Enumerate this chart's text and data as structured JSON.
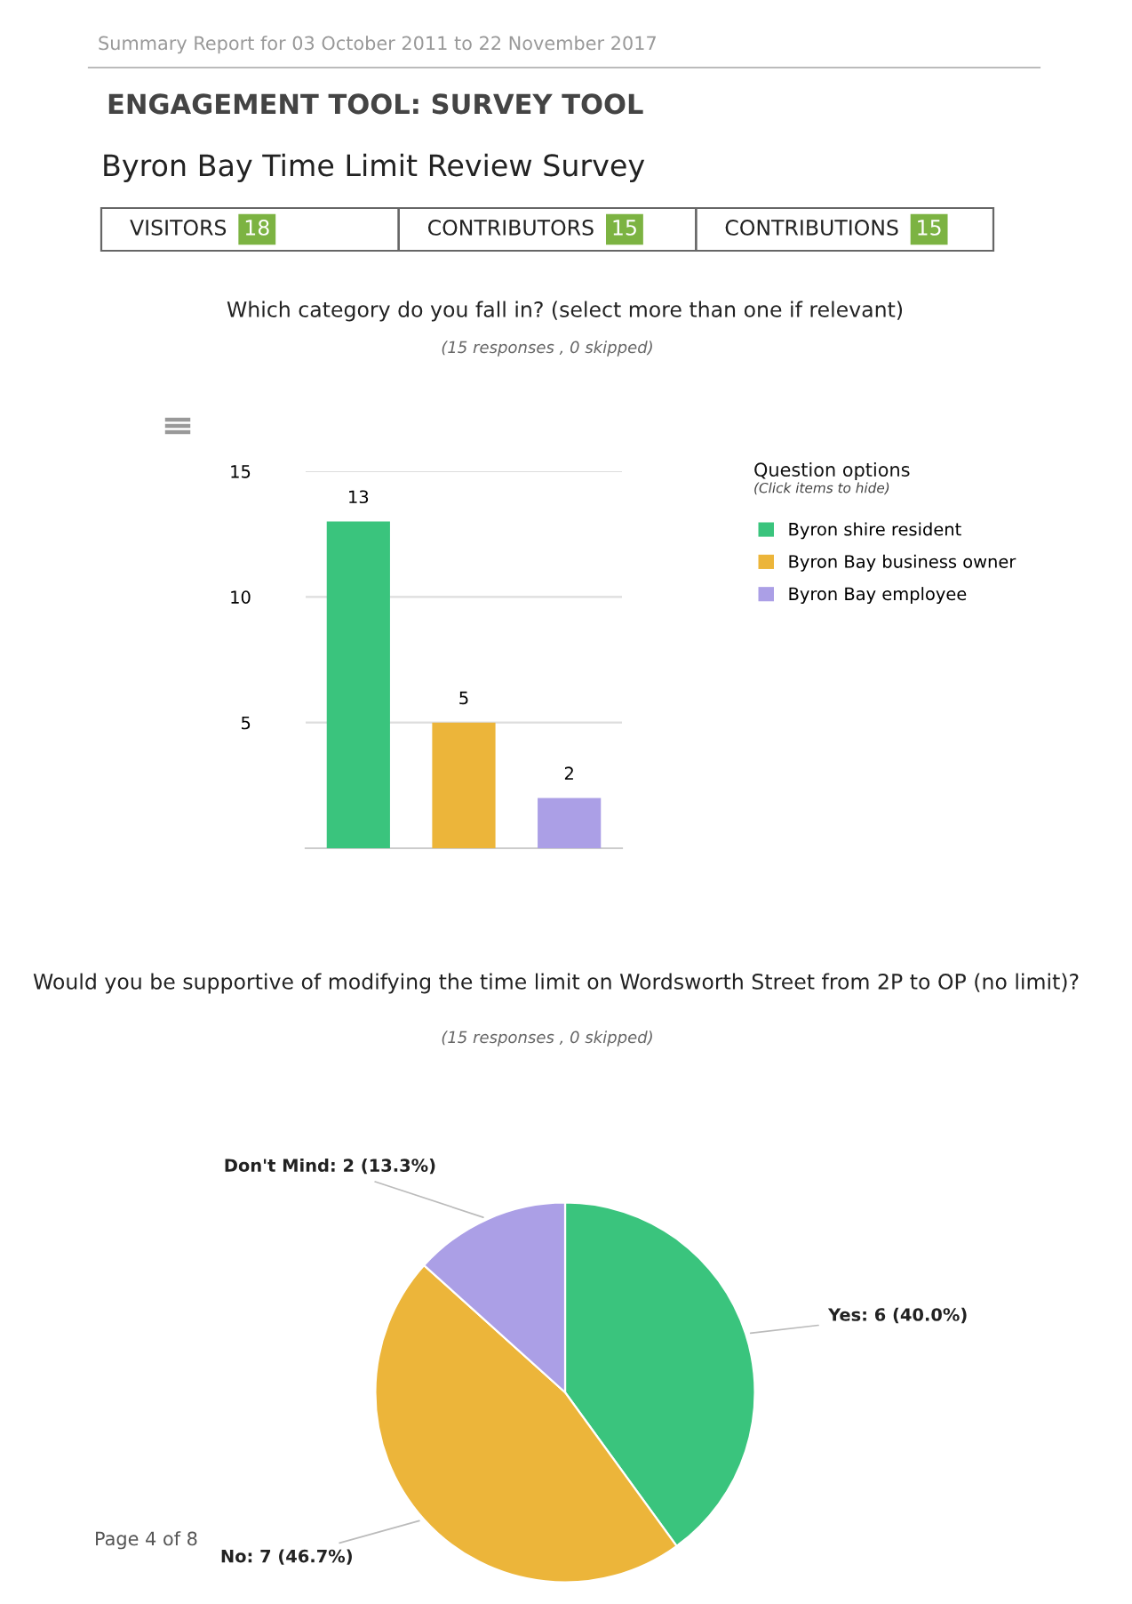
{
  "chart_data": [
    {
      "type": "other",
      "title": "ENGAGEMENT TOOL: SURVEY TOOL",
      "subtitle": "Byron Bay Time Limit Review Survey",
      "categories": [
        "VISITORS",
        "CONTRIBUTORS",
        "CONTRIBUTIONS"
      ],
      "values": [
        18,
        15,
        15
      ],
      "data_labels": true,
      "color": "#7cb342",
      "annotations": [
        "Summary Report for 03 October 2011 to 22 November 2017",
        "Page 4 of 8"
      ]
    },
    {
      "type": "bar",
      "title": "Which category do you fall in? (select more than one if relevant)",
      "subtitle": "(15 responses , 0 skipped)",
      "categories": [
        null,
        null,
        null
      ],
      "series": [
        {
          "name": "Byron shire resident",
          "color": "#3ac47d",
          "values": [
            13,
            null,
            null
          ]
        },
        {
          "name": "Byron Bay business owner",
          "color": "#ecb53a",
          "values": [
            null,
            5,
            null
          ]
        },
        {
          "name": "Byron Bay employee",
          "color": "#ab9fe6",
          "values": [
            null,
            null,
            2
          ]
        }
      ],
      "ylim": [
        0,
        15
      ],
      "yticks": [
        {
          "value": 0,
          "label": null
        },
        5,
        10,
        15
      ],
      "grid": "y",
      "data_labels": true,
      "legend": "right",
      "legend_title": "Question options",
      "annotations": [
        "(Click items to hide)"
      ]
    },
    {
      "type": "pie",
      "title": "Would you be supportive of modifying the time limit on Wordsworth Street from 2P to OP (no limit)?",
      "subtitle": "(15 responses , 0 skipped)",
      "categories": [
        "Yes",
        "No",
        "Don't Mind"
      ],
      "values": [
        6,
        7,
        2
      ],
      "colors": [
        "#3ac47d",
        "#ecb53a",
        "#ab9fe6"
      ],
      "value_labels": [
        "6 (40.0%)",
        "7 (46.7%)",
        "2 (13.3%)"
      ]
    }
  ]
}
